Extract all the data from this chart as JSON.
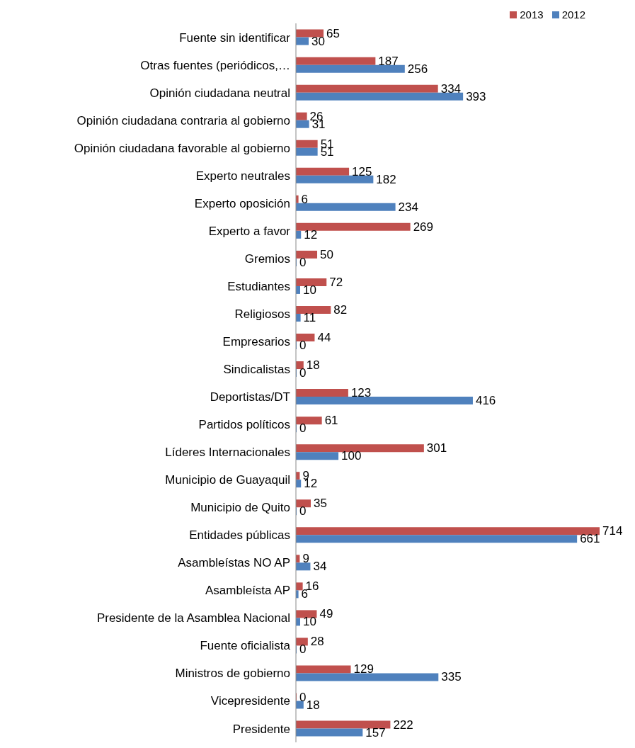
{
  "chart_data": {
    "type": "bar",
    "orientation": "horizontal",
    "categories": [
      "Fuente sin identificar",
      "Otras fuentes (periódicos,…",
      "Opinión ciudadana neutral",
      "Opinión ciudadana contraria al gobierno",
      "Opinión ciudadana favorable al gobierno",
      "Experto neutrales",
      "Experto oposición",
      "Experto a favor",
      "Gremios",
      "Estudiantes",
      "Religiosos",
      "Empresarios",
      "Sindicalistas",
      "Deportistas/DT",
      "Partidos políticos",
      "Líderes Internacionales",
      "Municipio de Guayaquil",
      "Municipio de Quito",
      "Entidades públicas",
      "Asambleístas NO AP",
      "Asambleísta AP",
      "Presidente de la Asamblea Nacional",
      "Fuente oficialista",
      "Ministros de gobierno",
      "Vicepresidente",
      "Presidente"
    ],
    "series": [
      {
        "name": "2013",
        "color": "#c0504d",
        "values": [
          65,
          187,
          334,
          26,
          51,
          125,
          6,
          269,
          50,
          72,
          82,
          44,
          18,
          123,
          61,
          301,
          9,
          35,
          714,
          9,
          16,
          49,
          28,
          129,
          0,
          222
        ]
      },
      {
        "name": "2012",
        "color": "#4f81bd",
        "values": [
          30,
          256,
          393,
          31,
          51,
          182,
          234,
          12,
          0,
          10,
          11,
          0,
          0,
          416,
          0,
          100,
          12,
          0,
          661,
          34,
          6,
          10,
          0,
          335,
          18,
          157
        ]
      }
    ],
    "data_labels": true,
    "grid": false,
    "legend": "top right"
  }
}
